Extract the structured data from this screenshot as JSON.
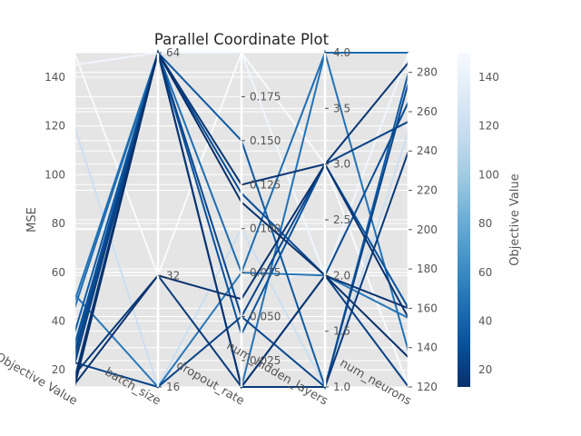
{
  "chart_data": {
    "type": "parallel_coordinates",
    "title": "Parallel Coordinate Plot",
    "ylabel": "MSE",
    "axes": [
      {
        "name": "Objective Value",
        "range": [
          13,
          150
        ],
        "ticks": [
          20,
          40,
          60,
          80,
          100,
          120,
          140
        ],
        "tick_side": "left"
      },
      {
        "name": "batch_size",
        "range": [
          16,
          64
        ],
        "ticks": [
          16,
          32,
          64
        ],
        "tick_side": "right"
      },
      {
        "name": "dropout_rate",
        "range": [
          0.01,
          0.2
        ],
        "ticks": [
          0.025,
          0.05,
          0.075,
          0.1,
          0.125,
          0.15,
          0.175
        ],
        "tick_format": 3,
        "tick_side": "right"
      },
      {
        "name": "num_hidden_layers",
        "range": [
          1,
          4
        ],
        "ticks": [
          1.0,
          1.5,
          2.0,
          2.5,
          3.0,
          3.5,
          4.0
        ],
        "tick_format": 1,
        "tick_side": "right"
      },
      {
        "name": "num_neurons",
        "range": [
          120,
          290
        ],
        "ticks": [
          120,
          140,
          160,
          180,
          200,
          220,
          240,
          260,
          280
        ],
        "tick_side": "right"
      }
    ],
    "colorbar": {
      "label": "Objective Value",
      "range": [
        13,
        150
      ],
      "ticks": [
        20,
        40,
        60,
        80,
        100,
        120,
        140
      ],
      "colors": [
        "#08306b",
        "#08519c",
        "#2171b5",
        "#4292c6",
        "#6baed6",
        "#9ecae1",
        "#c6dbef",
        "#deebf7",
        "#f7fbff"
      ]
    },
    "trials": [
      {
        "values": [
          150,
          32,
          0.2,
          3.0,
          120
        ]
      },
      {
        "values": [
          145,
          64,
          0.2,
          2.0,
          290
        ]
      },
      {
        "values": [
          120,
          16,
          0.1,
          1.0,
          250
        ]
      },
      {
        "values": [
          51,
          16,
          0.075,
          2.0,
          155
        ]
      },
      {
        "values": [
          48,
          64,
          0.01,
          4.0,
          138
        ]
      },
      {
        "values": [
          45,
          64,
          0.075,
          4.0,
          290
        ]
      },
      {
        "values": [
          35,
          64,
          0.15,
          1.0,
          280
        ]
      },
      {
        "values": [
          30,
          64,
          0.04,
          3.0,
          160
        ]
      },
      {
        "values": [
          27,
          64,
          0.12,
          2.0,
          265
        ]
      },
      {
        "values": [
          25,
          64,
          0.05,
          1.0,
          275
        ]
      },
      {
        "values": [
          23,
          16,
          0.05,
          3.0,
          255
        ]
      },
      {
        "values": [
          22,
          64,
          0.01,
          2.0,
          120
        ]
      },
      {
        "values": [
          18,
          32,
          0.01,
          1.0,
          240
        ]
      },
      {
        "values": [
          16,
          64,
          0.125,
          3.0,
          285
        ]
      },
      {
        "values": [
          15,
          64,
          0.01,
          2.0,
          160
        ]
      },
      {
        "values": [
          14,
          32,
          0.06,
          3.0,
          155
        ]
      },
      {
        "values": [
          13,
          64,
          0.115,
          2.0,
          135
        ]
      }
    ]
  }
}
